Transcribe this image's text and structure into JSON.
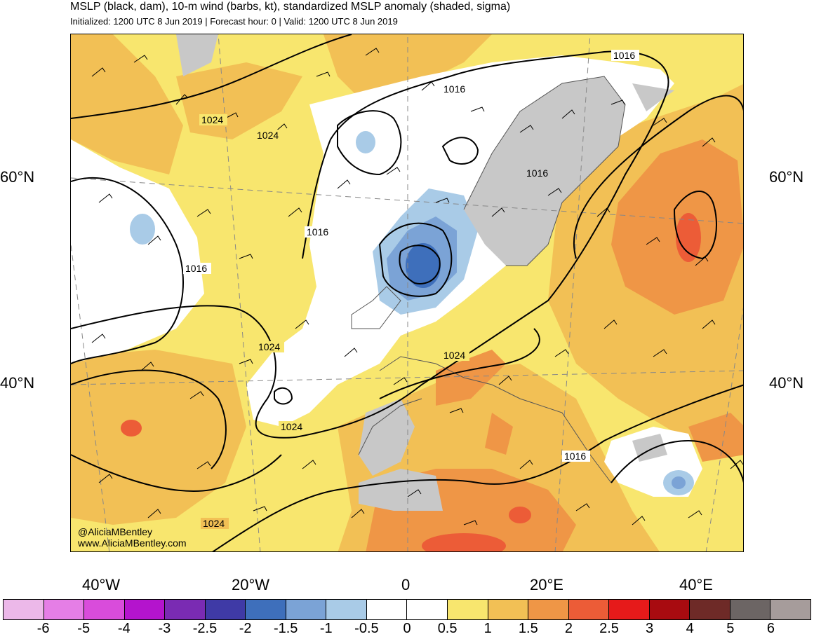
{
  "header": {
    "title": "MSLP (black, dam), 10-m wind (barbs, kt), standardized MSLP anomaly (shaded, sigma)",
    "subtitle": "Initialized: 1200 UTC 8 Jun 2019 | Forecast hour: 0 | Valid: 1200 UTC 8 Jun 2019"
  },
  "map": {
    "lat_labels": {
      "lat60_left": "60°N",
      "lat60_right": "60°N",
      "lat40_left": "40°N",
      "lat40_right": "40°N"
    },
    "lon_labels": {
      "lon40w": "40°W",
      "lon20w": "20°W",
      "lon0": "0",
      "lon20e": "20°E",
      "lon40e": "40°E"
    },
    "contour_labels": [
      "1016",
      "1024",
      "1024",
      "1016",
      "1016",
      "1016",
      "1024",
      "1024",
      "1024",
      "1016",
      "1024",
      "1016"
    ],
    "credit": {
      "handle": "@AliciaMBentley",
      "website": "www.AliciaMBentley.com"
    },
    "colors": {
      "land_gray": "#c8c8c8",
      "neutral": "#ffffff",
      "pos_05": "#f8e66e",
      "pos_1": "#f2c055",
      "pos_15": "#ef9646",
      "pos_2": "#ec5c37",
      "neg_05": "#a9cbe7",
      "neg_1": "#7ba3d6",
      "neg_15": "#3e6fbb"
    }
  },
  "colorbar": {
    "colors": [
      "#ecb8e9",
      "#e57ee6",
      "#d94cdb",
      "#b414cd",
      "#7a2bb3",
      "#3f3aa6",
      "#3e6fbb",
      "#7ba3d6",
      "#a9cbe7",
      "#ffffff",
      "#ffffff",
      "#f8e66e",
      "#f2c055",
      "#ef9646",
      "#ec5c37",
      "#e61a1a",
      "#a80b10",
      "#6e2a27",
      "#6c6564",
      "#a69c9b"
    ],
    "labels": [
      "-6",
      "-5",
      "-4",
      "-3",
      "-2.5",
      "-2",
      "-1.5",
      "-1",
      "-0.5",
      "0",
      "0.5",
      "1",
      "1.5",
      "2",
      "2.5",
      "3",
      "4",
      "5",
      "6"
    ]
  }
}
